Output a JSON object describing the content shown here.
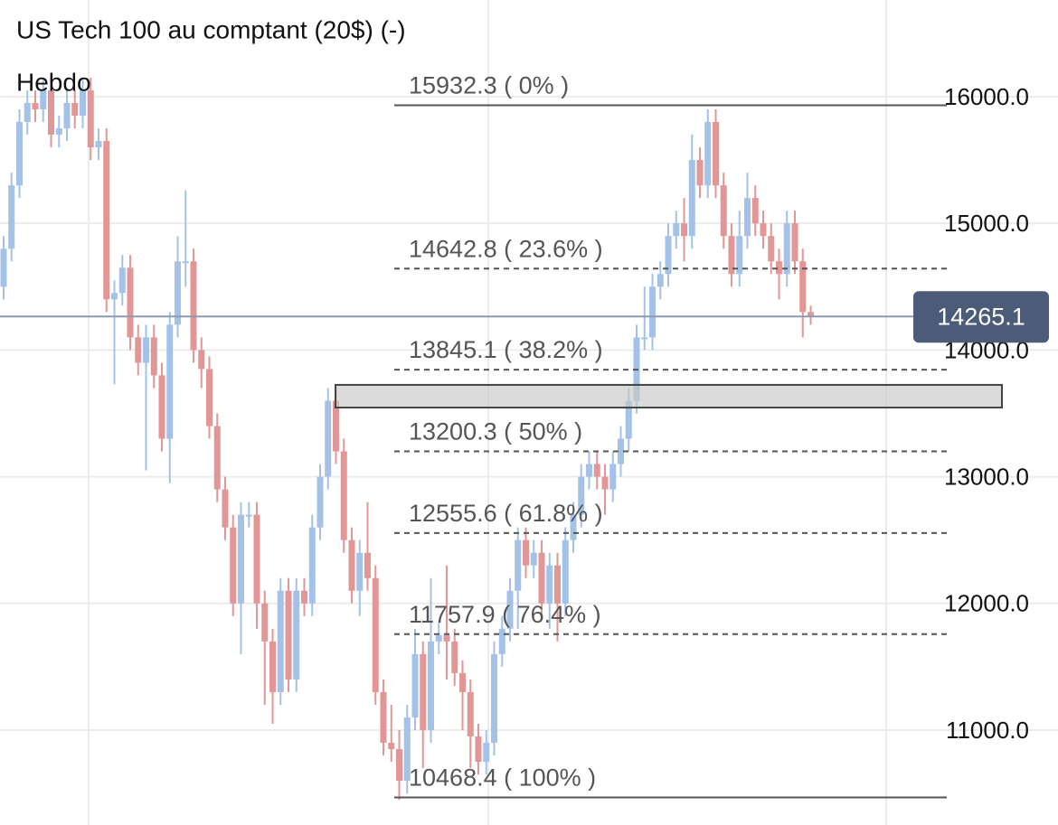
{
  "chart_data": {
    "type": "candlestick",
    "title": "US Tech 100 au comptant (20$) (-)",
    "subtitle": "Hebdo",
    "up_color": "#a4c2e8",
    "down_color": "#e39696",
    "ylim": [
      10251,
      16763
    ],
    "yticks": [
      {
        "value": 11000,
        "label": "11000.0"
      },
      {
        "value": 12000,
        "label": "12000.0"
      },
      {
        "value": 13000,
        "label": "13000.0"
      },
      {
        "value": 14000,
        "label": "14000.0"
      },
      {
        "value": 15000,
        "label": "15000.0"
      },
      {
        "value": 16000,
        "label": "16000.0"
      }
    ],
    "grid": true,
    "open": [
      14500,
      14800,
      15300,
      15800,
      15950,
      15900,
      16050,
      15700,
      15750,
      15950,
      15850,
      16050,
      15600,
      15650,
      14400,
      14450,
      14650,
      14100,
      13900,
      14100,
      13800,
      13300,
      14200,
      14700,
      14700,
      14000,
      13850,
      13400,
      12900,
      12600,
      12000,
      12700,
      12700,
      12000,
      11700,
      11300,
      12100,
      11400,
      12100,
      12000,
      12600,
      13000,
      13600,
      13200,
      12500,
      12100,
      12400,
      12200,
      11300,
      10900,
      10850,
      10600,
      11100,
      11600,
      11000,
      11700,
      11750,
      11700,
      11450,
      11300,
      10950,
      10750,
      10900,
      11600,
      11800,
      12100,
      12500,
      12300,
      12400,
      12000,
      12300,
      12000,
      12500,
      12700,
      13000,
      13100,
      13000,
      12900,
      13100,
      13300,
      13600,
      14100,
      14100,
      14500,
      14600,
      14900,
      15000,
      14900,
      15500,
      15300,
      15800,
      15300,
      14900,
      14600,
      14900,
      15200,
      15000,
      14900,
      14700,
      14600,
      15000,
      14700,
      14300
    ],
    "high": [
      14900,
      15400,
      15900,
      16050,
      16050,
      16150,
      16150,
      15850,
      16050,
      16050,
      16150,
      16150,
      15750,
      15750,
      14550,
      14750,
      14750,
      14200,
      14200,
      14200,
      13900,
      14300,
      14900,
      15260,
      14800,
      14100,
      13950,
      13500,
      13000,
      12700,
      12800,
      12800,
      12800,
      12100,
      11800,
      12200,
      12200,
      12200,
      12200,
      12700,
      13100,
      13700,
      13700,
      13300,
      12600,
      12500,
      12800,
      12300,
      11400,
      11200,
      11000,
      11200,
      11800,
      11700,
      12200,
      11850,
      12300,
      11800,
      11550,
      11400,
      11050,
      11000,
      11700,
      11900,
      12200,
      12600,
      12600,
      12500,
      12500,
      12400,
      12400,
      12600,
      12800,
      13100,
      13200,
      13200,
      13100,
      13200,
      13400,
      13700,
      14200,
      14500,
      14600,
      14700,
      15000,
      15100,
      15200,
      15700,
      15600,
      15900,
      15900,
      15400,
      15000,
      15100,
      15400,
      15300,
      15100,
      15000,
      14800,
      15100,
      15100,
      14800,
      14350
    ],
    "low": [
      14400,
      14700,
      15200,
      15700,
      15800,
      15800,
      15600,
      15600,
      15650,
      15750,
      15750,
      15500,
      15500,
      14300,
      13730,
      14350,
      14000,
      13800,
      13050,
      13700,
      13200,
      12950,
      14100,
      14500,
      13900,
      13700,
      13300,
      12800,
      12500,
      11900,
      11600,
      12600,
      11800,
      11200,
      11050,
      11200,
      11300,
      11300,
      11900,
      11900,
      12500,
      12900,
      13100,
      12400,
      12000,
      11900,
      12100,
      11200,
      10800,
      10750,
      10450,
      10500,
      11000,
      10700,
      10900,
      11600,
      11400,
      11350,
      11000,
      10700,
      10650,
      10650,
      10800,
      11500,
      11700,
      11800,
      12200,
      12200,
      11900,
      11800,
      11700,
      11900,
      12400,
      12600,
      12900,
      12900,
      12700,
      12800,
      13000,
      13200,
      13500,
      14000,
      14000,
      14400,
      14500,
      14800,
      14700,
      14800,
      15200,
      15200,
      15200,
      14800,
      14500,
      14500,
      14800,
      14900,
      14800,
      14600,
      14400,
      14500,
      14600,
      14100,
      14200
    ],
    "close": [
      14800,
      15300,
      15800,
      15950,
      15900,
      16050,
      15700,
      15750,
      15950,
      15850,
      16050,
      15600,
      15650,
      14400,
      14450,
      14650,
      14100,
      13900,
      14100,
      13800,
      13300,
      14200,
      14700,
      14700,
      14000,
      13850,
      13400,
      12900,
      12600,
      12000,
      12700,
      12700,
      12000,
      11700,
      11300,
      12100,
      11400,
      12100,
      12000,
      12600,
      13000,
      13600,
      13200,
      12500,
      12100,
      12400,
      12200,
      11300,
      10900,
      10850,
      10600,
      11100,
      11600,
      11000,
      11700,
      11750,
      11700,
      11450,
      11300,
      10950,
      10750,
      10900,
      11600,
      11800,
      12100,
      12500,
      12300,
      12400,
      12000,
      12300,
      12000,
      12500,
      12700,
      13000,
      13100,
      13000,
      12900,
      13100,
      13300,
      13600,
      14100,
      14100,
      14500,
      14600,
      14900,
      15000,
      14900,
      15500,
      15300,
      15800,
      15300,
      14900,
      14600,
      14900,
      15200,
      15000,
      14900,
      14700,
      14600,
      15000,
      14700,
      14300,
      14265.1
    ],
    "fib_levels": [
      {
        "value": 15932.3,
        "label": "15932.3 ( 0% )"
      },
      {
        "value": 14642.8,
        "label": "14642.8 ( 23.6% )"
      },
      {
        "value": 13845.1,
        "label": "13845.1 ( 38.2% )"
      },
      {
        "value": 13200.3,
        "label": "13200.3 ( 50% )"
      },
      {
        "value": 12555.6,
        "label": "12555.6 ( 61.8% )"
      },
      {
        "value": 11757.9,
        "label": "11757.9 ( 76.4% )"
      },
      {
        "value": 10468.4,
        "label": "10468.4 ( 100% )"
      }
    ],
    "zone": [
      13546,
      13725
    ],
    "last_price": 14265.1
  }
}
